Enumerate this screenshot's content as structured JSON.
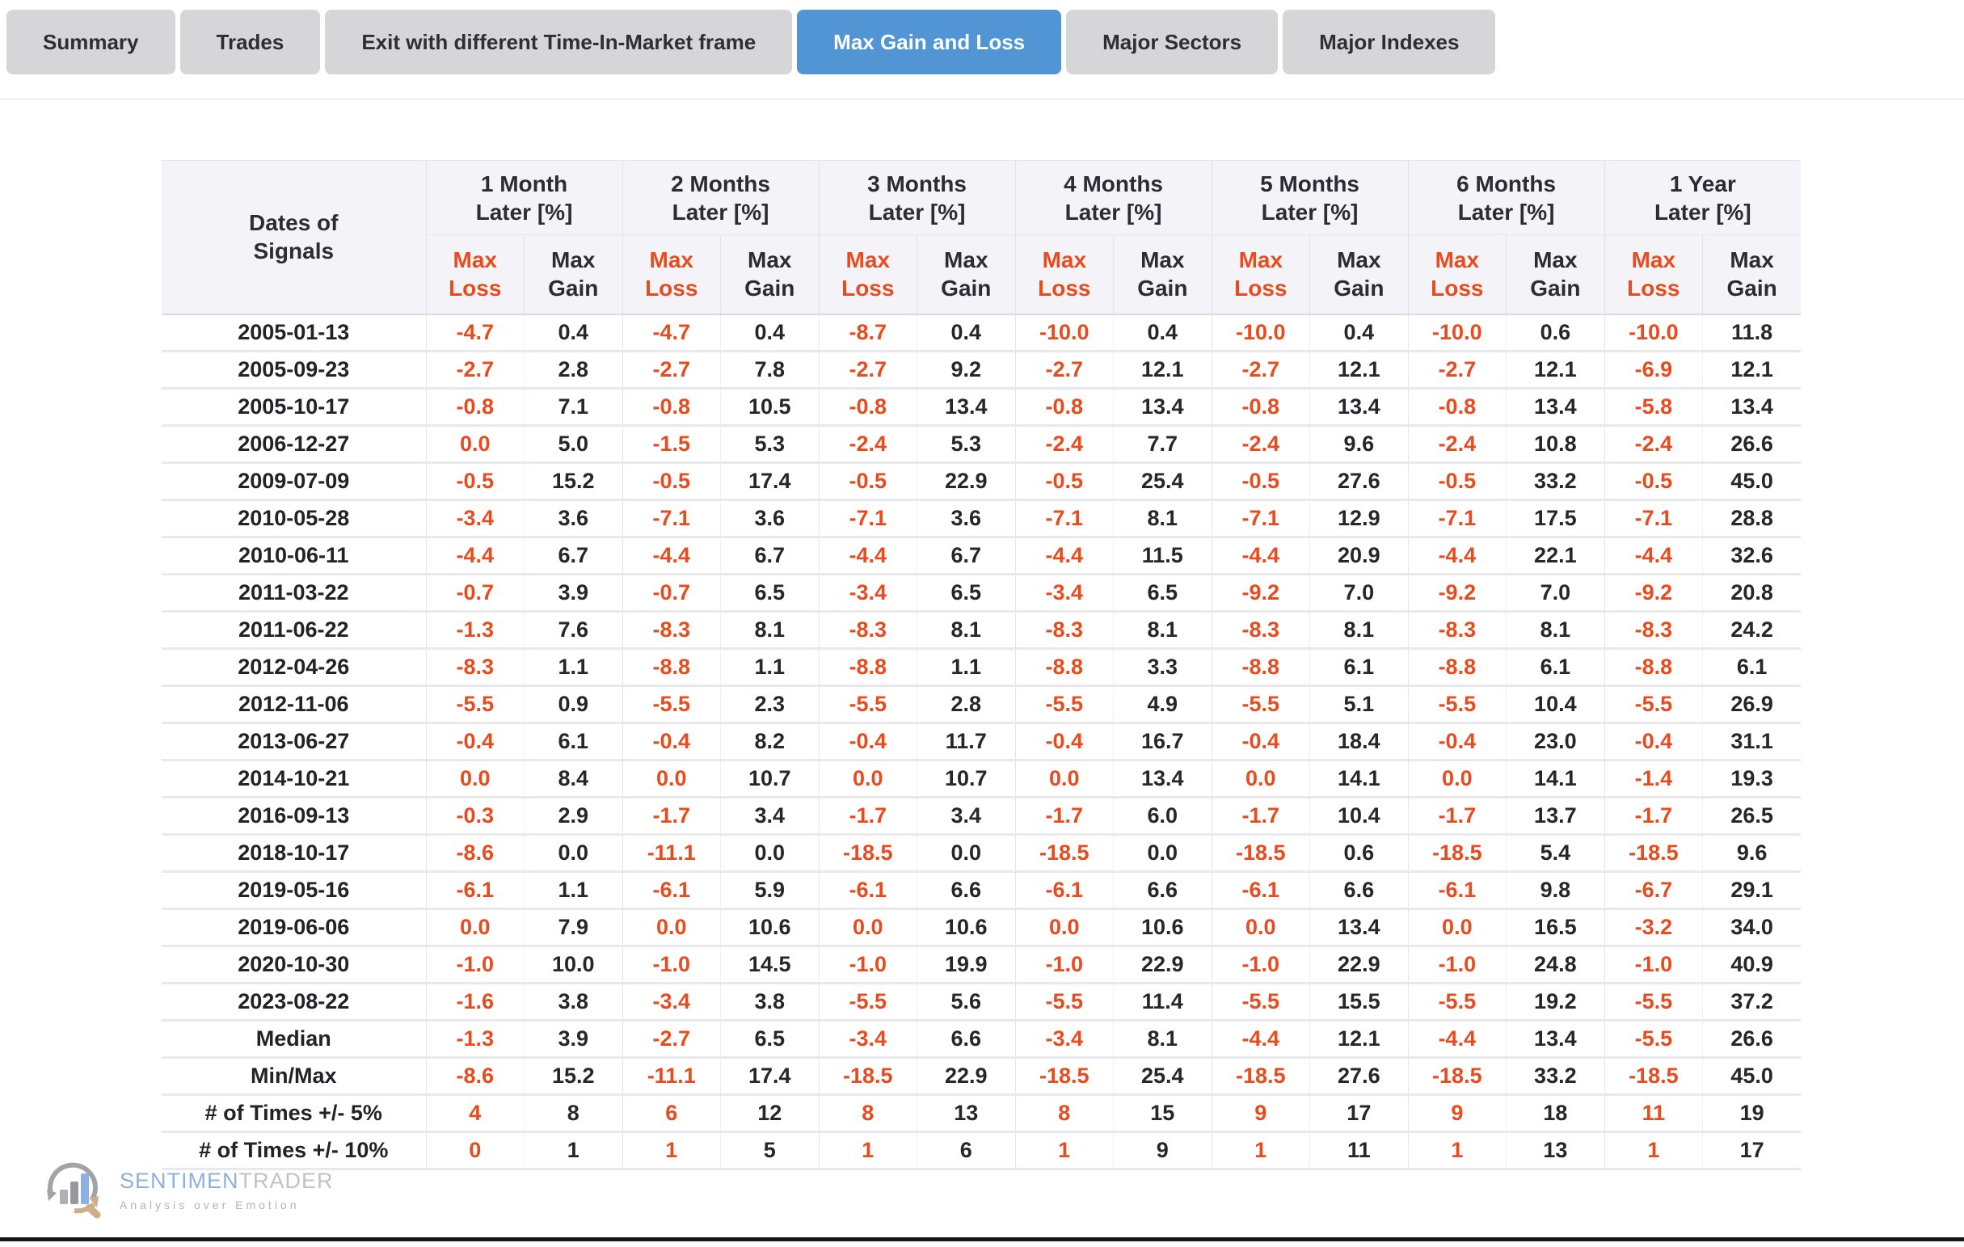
{
  "tabs": [
    {
      "id": "summary",
      "label": "Summary",
      "active": false
    },
    {
      "id": "trades",
      "label": "Trades",
      "active": false
    },
    {
      "id": "exit-time-in-market",
      "label": "Exit with different Time-In-Market frame",
      "active": false
    },
    {
      "id": "max-gain-and-loss",
      "label": "Max Gain and Loss",
      "active": true
    },
    {
      "id": "major-sectors",
      "label": "Major Sectors",
      "active": false
    },
    {
      "id": "major-indexes",
      "label": "Major Indexes",
      "active": false
    }
  ],
  "colors": {
    "active_tab": "#5295d5",
    "inactive_tab": "#d6d6d8",
    "loss_orange": "#e84c1e",
    "gain_dark": "#26262c",
    "header_bg": "#f4f4f8"
  },
  "table": {
    "dates_header_lines": [
      "Dates of",
      "Signals"
    ],
    "period_line2": "Later [%]",
    "periods": [
      "1 Month",
      "2 Months",
      "3 Months",
      "4 Months",
      "5 Months",
      "6 Months",
      "1 Year"
    ],
    "sub_loss_lines": [
      "Max",
      "Loss"
    ],
    "sub_gain_lines": [
      "Max",
      "Gain"
    ],
    "rows": [
      {
        "label": "2005-01-13",
        "values": [
          "-4.7",
          "0.4",
          "-4.7",
          "0.4",
          "-8.7",
          "0.4",
          "-10.0",
          "0.4",
          "-10.0",
          "0.4",
          "-10.0",
          "0.6",
          "-10.0",
          "11.8"
        ]
      },
      {
        "label": "2005-09-23",
        "values": [
          "-2.7",
          "2.8",
          "-2.7",
          "7.8",
          "-2.7",
          "9.2",
          "-2.7",
          "12.1",
          "-2.7",
          "12.1",
          "-2.7",
          "12.1",
          "-6.9",
          "12.1"
        ]
      },
      {
        "label": "2005-10-17",
        "values": [
          "-0.8",
          "7.1",
          "-0.8",
          "10.5",
          "-0.8",
          "13.4",
          "-0.8",
          "13.4",
          "-0.8",
          "13.4",
          "-0.8",
          "13.4",
          "-5.8",
          "13.4"
        ]
      },
      {
        "label": "2006-12-27",
        "values": [
          "0.0",
          "5.0",
          "-1.5",
          "5.3",
          "-2.4",
          "5.3",
          "-2.4",
          "7.7",
          "-2.4",
          "9.6",
          "-2.4",
          "10.8",
          "-2.4",
          "26.6"
        ]
      },
      {
        "label": "2009-07-09",
        "values": [
          "-0.5",
          "15.2",
          "-0.5",
          "17.4",
          "-0.5",
          "22.9",
          "-0.5",
          "25.4",
          "-0.5",
          "27.6",
          "-0.5",
          "33.2",
          "-0.5",
          "45.0"
        ]
      },
      {
        "label": "2010-05-28",
        "values": [
          "-3.4",
          "3.6",
          "-7.1",
          "3.6",
          "-7.1",
          "3.6",
          "-7.1",
          "8.1",
          "-7.1",
          "12.9",
          "-7.1",
          "17.5",
          "-7.1",
          "28.8"
        ]
      },
      {
        "label": "2010-06-11",
        "values": [
          "-4.4",
          "6.7",
          "-4.4",
          "6.7",
          "-4.4",
          "6.7",
          "-4.4",
          "11.5",
          "-4.4",
          "20.9",
          "-4.4",
          "22.1",
          "-4.4",
          "32.6"
        ]
      },
      {
        "label": "2011-03-22",
        "values": [
          "-0.7",
          "3.9",
          "-0.7",
          "6.5",
          "-3.4",
          "6.5",
          "-3.4",
          "6.5",
          "-9.2",
          "7.0",
          "-9.2",
          "7.0",
          "-9.2",
          "20.8"
        ]
      },
      {
        "label": "2011-06-22",
        "values": [
          "-1.3",
          "7.6",
          "-8.3",
          "8.1",
          "-8.3",
          "8.1",
          "-8.3",
          "8.1",
          "-8.3",
          "8.1",
          "-8.3",
          "8.1",
          "-8.3",
          "24.2"
        ]
      },
      {
        "label": "2012-04-26",
        "values": [
          "-8.3",
          "1.1",
          "-8.8",
          "1.1",
          "-8.8",
          "1.1",
          "-8.8",
          "3.3",
          "-8.8",
          "6.1",
          "-8.8",
          "6.1",
          "-8.8",
          "6.1"
        ]
      },
      {
        "label": "2012-11-06",
        "values": [
          "-5.5",
          "0.9",
          "-5.5",
          "2.3",
          "-5.5",
          "2.8",
          "-5.5",
          "4.9",
          "-5.5",
          "5.1",
          "-5.5",
          "10.4",
          "-5.5",
          "26.9"
        ]
      },
      {
        "label": "2013-06-27",
        "values": [
          "-0.4",
          "6.1",
          "-0.4",
          "8.2",
          "-0.4",
          "11.7",
          "-0.4",
          "16.7",
          "-0.4",
          "18.4",
          "-0.4",
          "23.0",
          "-0.4",
          "31.1"
        ]
      },
      {
        "label": "2014-10-21",
        "values": [
          "0.0",
          "8.4",
          "0.0",
          "10.7",
          "0.0",
          "10.7",
          "0.0",
          "13.4",
          "0.0",
          "14.1",
          "0.0",
          "14.1",
          "-1.4",
          "19.3"
        ]
      },
      {
        "label": "2016-09-13",
        "values": [
          "-0.3",
          "2.9",
          "-1.7",
          "3.4",
          "-1.7",
          "3.4",
          "-1.7",
          "6.0",
          "-1.7",
          "10.4",
          "-1.7",
          "13.7",
          "-1.7",
          "26.5"
        ]
      },
      {
        "label": "2018-10-17",
        "values": [
          "-8.6",
          "0.0",
          "-11.1",
          "0.0",
          "-18.5",
          "0.0",
          "-18.5",
          "0.0",
          "-18.5",
          "0.6",
          "-18.5",
          "5.4",
          "-18.5",
          "9.6"
        ]
      },
      {
        "label": "2019-05-16",
        "values": [
          "-6.1",
          "1.1",
          "-6.1",
          "5.9",
          "-6.1",
          "6.6",
          "-6.1",
          "6.6",
          "-6.1",
          "6.6",
          "-6.1",
          "9.8",
          "-6.7",
          "29.1"
        ]
      },
      {
        "label": "2019-06-06",
        "values": [
          "0.0",
          "7.9",
          "0.0",
          "10.6",
          "0.0",
          "10.6",
          "0.0",
          "10.6",
          "0.0",
          "13.4",
          "0.0",
          "16.5",
          "-3.2",
          "34.0"
        ]
      },
      {
        "label": "2020-10-30",
        "values": [
          "-1.0",
          "10.0",
          "-1.0",
          "14.5",
          "-1.0",
          "19.9",
          "-1.0",
          "22.9",
          "-1.0",
          "22.9",
          "-1.0",
          "24.8",
          "-1.0",
          "40.9"
        ]
      },
      {
        "label": "2023-08-22",
        "values": [
          "-1.6",
          "3.8",
          "-3.4",
          "3.8",
          "-5.5",
          "5.6",
          "-5.5",
          "11.4",
          "-5.5",
          "15.5",
          "-5.5",
          "19.2",
          "-5.5",
          "37.2"
        ]
      }
    ],
    "stat_rows": [
      {
        "label": "Median",
        "values": [
          "-1.3",
          "3.9",
          "-2.7",
          "6.5",
          "-3.4",
          "6.6",
          "-3.4",
          "8.1",
          "-4.4",
          "12.1",
          "-4.4",
          "13.4",
          "-5.5",
          "26.6"
        ]
      },
      {
        "label": "Min/Max",
        "values": [
          "-8.6",
          "15.2",
          "-11.1",
          "17.4",
          "-18.5",
          "22.9",
          "-18.5",
          "25.4",
          "-18.5",
          "27.6",
          "-18.5",
          "33.2",
          "-18.5",
          "45.0"
        ]
      },
      {
        "label": "# of Times +/- 5%",
        "values": [
          "4",
          "8",
          "6",
          "12",
          "8",
          "13",
          "8",
          "15",
          "9",
          "17",
          "9",
          "18",
          "11",
          "19"
        ]
      },
      {
        "label": "# of Times +/- 10%",
        "values": [
          "0",
          "1",
          "1",
          "5",
          "1",
          "6",
          "1",
          "9",
          "1",
          "11",
          "1",
          "13",
          "1",
          "17"
        ]
      }
    ]
  },
  "watermark": {
    "brand_part1": "SENTIMEN",
    "brand_part2": "TRADER",
    "tagline": "Analysis over Emotion"
  }
}
